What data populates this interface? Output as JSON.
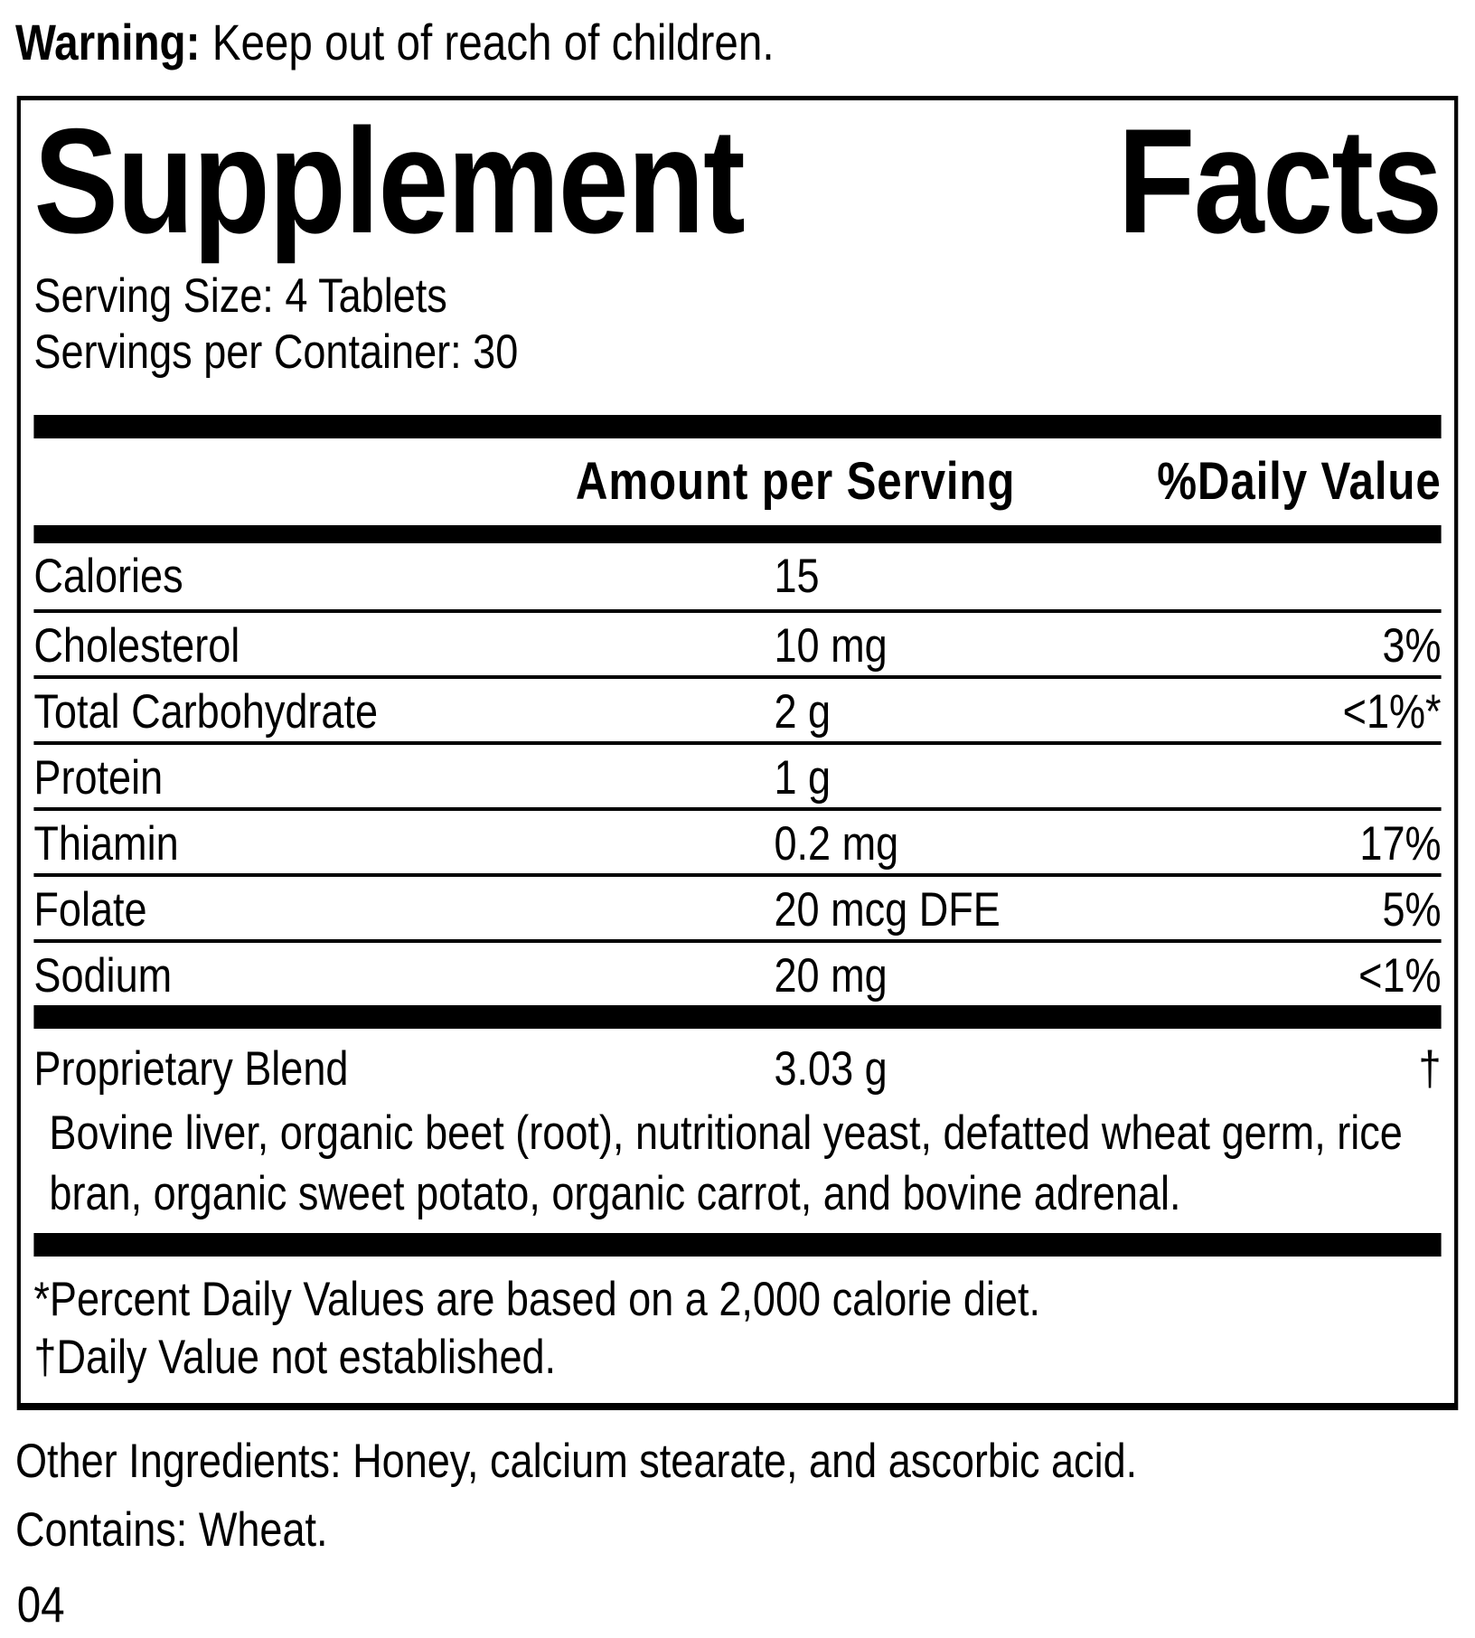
{
  "colors": {
    "ink": "#000000",
    "background": "#ffffff"
  },
  "warning": {
    "label": "Warning:",
    "text": "Keep out of reach of children."
  },
  "title": {
    "word1": "Supplement",
    "word2": "Facts"
  },
  "serving": {
    "size": "Serving Size: 4 Tablets",
    "per_container": "Servings per Container: 30"
  },
  "table": {
    "amount_header": "Amount per Serving",
    "dv_header": "%Daily Value",
    "rows": [
      {
        "name": "Calories",
        "amount": "15",
        "dv": ""
      },
      {
        "name": "Cholesterol",
        "amount": "10 mg",
        "dv": "3%"
      },
      {
        "name": "Total Carbohydrate",
        "amount": "2 g",
        "dv": "<1%*"
      },
      {
        "name": "Protein",
        "amount": "1 g",
        "dv": ""
      },
      {
        "name": "Thiamin",
        "amount": "0.2 mg",
        "dv": "17%"
      },
      {
        "name": "Folate",
        "amount": "20 mcg DFE",
        "dv": "5%"
      },
      {
        "name": "Sodium",
        "amount": "20 mg",
        "dv": "<1%"
      }
    ],
    "proprietary": {
      "name": "Proprietary Blend",
      "amount": "3.03 g",
      "dv": "†"
    },
    "blend_lines": [
      "Bovine liver, organic beet (root), nutritional yeast, defatted wheat germ, rice",
      "bran, organic sweet potato, organic carrot, and bovine adrenal."
    ],
    "footnotes": [
      "*Percent Daily Values are based on a 2,000 calorie diet.",
      "†Daily Value not established."
    ]
  },
  "other_ingredients": "Other Ingredients: Honey, calcium stearate, and ascorbic acid.",
  "contains": "Contains: Wheat.",
  "code": "04"
}
